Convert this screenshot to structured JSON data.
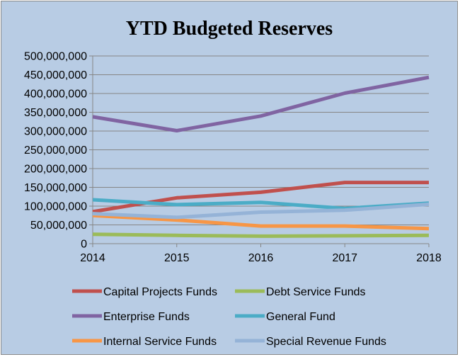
{
  "chart_data": {
    "type": "line",
    "title": "YTD Budgeted Reserves",
    "x": [
      "2014",
      "2015",
      "2016",
      "2017",
      "2018"
    ],
    "ylim": [
      0,
      500000000
    ],
    "yticks": [
      0,
      50000000,
      100000000,
      150000000,
      200000000,
      250000000,
      300000000,
      350000000,
      400000000,
      450000000,
      500000000
    ],
    "ytick_labels": [
      "0",
      "50,000,000",
      "100,000,000",
      "150,000,000",
      "200,000,000",
      "250,000,000",
      "300,000,000",
      "350,000,000",
      "400,000,000",
      "450,000,000",
      "500,000,000"
    ],
    "grid": "horizontal",
    "legend_position": "bottom",
    "series": [
      {
        "name": "Capital Projects Funds",
        "color": "#c0504d",
        "values": [
          85000000,
          122000000,
          137000000,
          163000000,
          163000000
        ]
      },
      {
        "name": "Debt Service Funds",
        "color": "#9bbb59",
        "values": [
          25000000,
          22000000,
          20000000,
          21000000,
          22000000
        ]
      },
      {
        "name": "Enterprise Funds",
        "color": "#8064a2",
        "values": [
          338000000,
          301000000,
          340000000,
          401000000,
          443000000
        ]
      },
      {
        "name": "General Fund",
        "color": "#4bacc6",
        "values": [
          117000000,
          104000000,
          110000000,
          94000000,
          108000000
        ]
      },
      {
        "name": "Internal Service Funds",
        "color": "#f79646",
        "values": [
          75000000,
          63000000,
          47000000,
          47000000,
          40000000
        ]
      },
      {
        "name": "Special Revenue Funds",
        "color": "#95b3d7",
        "values": [
          80000000,
          70000000,
          84000000,
          89000000,
          105000000
        ]
      }
    ]
  }
}
